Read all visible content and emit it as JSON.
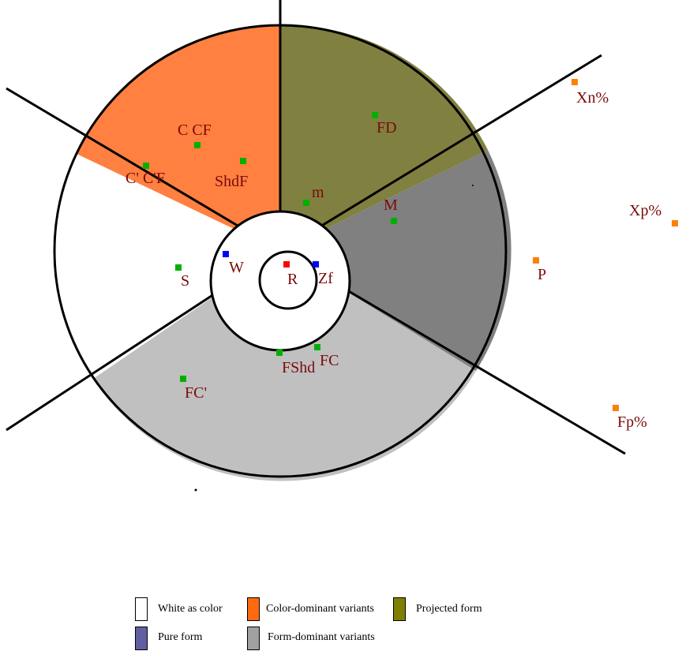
{
  "colors": {
    "white_as_color": "#ffffff",
    "color_dominant": "#ff8040",
    "projected_form": "#808040",
    "form_dominant": "#c0c0c0",
    "dark_gray_sector": "#808080",
    "pure_form": "#6060a0",
    "label": "#7a0a0a",
    "marker_green": "#00b000",
    "marker_blue": "#0000ff",
    "marker_red": "#ff0000",
    "marker_orange": "#ff8000"
  },
  "labels": {
    "c_cf": "C CF",
    "c_prime_cf": "C' C'F",
    "shdf": "ShdF",
    "fd": "FD",
    "m_small": "m",
    "m_big": "M",
    "s": "S",
    "w": "W",
    "r": "R",
    "zf": "Zf",
    "fshd": "FShd",
    "fc": "FC",
    "fc_prime": "FC'",
    "xn": "Xn%",
    "xp": "Xp%",
    "p": "P",
    "fp": "Fp%"
  },
  "legend": {
    "white_as_color": "White as color",
    "color_dominant": "Color-dominant variants",
    "projected_form": "Projected form",
    "pure_form": "Pure form",
    "form_dominant": "Form-dominant variants"
  }
}
